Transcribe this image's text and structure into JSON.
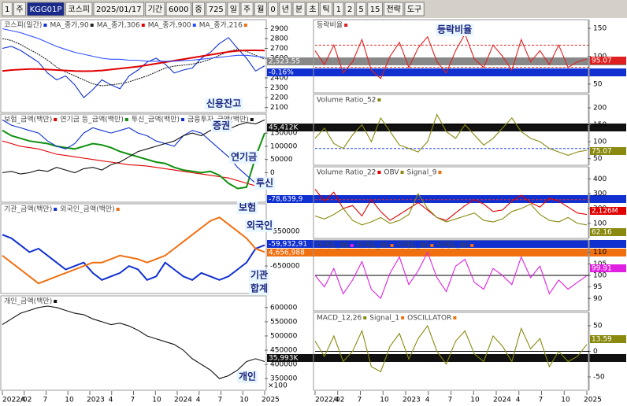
{
  "toolbar": {
    "items": [
      "1",
      "주",
      "KGG01P",
      "코스피",
      "2025/01/17",
      "기간",
      "6000",
      "중",
      "725",
      "일",
      "주",
      "월",
      "0",
      "년",
      "분",
      "초",
      "틱",
      "1",
      "2",
      "5",
      "15",
      "전략",
      "도구"
    ]
  },
  "x_labels": [
    "2022/02",
    "4",
    "7",
    "10",
    "2023",
    "4",
    "7",
    "10",
    "2024",
    "4",
    "7",
    "10",
    "2025"
  ],
  "left_panels": [
    {
      "labels": [
        "코스피(일간)",
        "MA_종가,90",
        "MA_종가,306",
        "MA_종가,900",
        "MA_종가,216"
      ],
      "ylim": [
        2080,
        2960
      ],
      "yticks": [
        2900,
        2800,
        2700,
        2600,
        2400,
        2300,
        2200,
        2100
      ],
      "series": [
        {
          "color": "#1030d0",
          "values": [
            2700,
            2720,
            2680,
            2620,
            2560,
            2450,
            2380,
            2420,
            2330,
            2200,
            2280,
            2380,
            2330,
            2290,
            2420,
            2480,
            2560,
            2600,
            2540,
            2450,
            2480,
            2500,
            2600,
            2660,
            2750,
            2810,
            2700,
            2600,
            2470,
            2523.55
          ]
        },
        {
          "color": "#222",
          "values": [
            2800,
            2780,
            2740,
            2690,
            2640,
            2580,
            2510,
            2460,
            2420,
            2380,
            2340,
            2320,
            2330,
            2340,
            2360,
            2390,
            2420,
            2460,
            2500,
            2520,
            2530,
            2540,
            2560,
            2590,
            2630,
            2670,
            2690,
            2670,
            2630,
            2590
          ]
        },
        {
          "color": "#e00000",
          "values": [
            2470,
            2480,
            2485,
            2490,
            2490,
            2485,
            2480,
            2475,
            2470,
            2468,
            2470,
            2475,
            2485,
            2495,
            2505,
            2515,
            2530,
            2545,
            2560,
            2575,
            2590,
            2605,
            2620,
            2635,
            2650,
            2665,
            2675,
            2680,
            2680,
            2678
          ]
        },
        {
          "color": "#3050ff",
          "values": [
            2900,
            2880,
            2860,
            2830,
            2800,
            2760,
            2720,
            2690,
            2660,
            2640,
            2620,
            2600,
            2590,
            2590,
            2580,
            2580,
            2570,
            2570,
            2570,
            2570,
            2575,
            2580,
            2590,
            2600,
            2610,
            2620,
            2630,
            2630,
            2620,
            2610
          ]
        }
      ],
      "tags": [
        {
          "label": "2,523.55",
          "color": "#888"
        },
        {
          "label": "-0.16%",
          "color": "#1030d0"
        }
      ]
    },
    {
      "labels": [
        "보험_금액(백만)",
        "연기금 등_금액(백만)",
        "투신_금액(백만)",
        "금융투자_금액(백만)"
      ],
      "ylim": [
        -100000,
        210000
      ],
      "yticks": [
        150000,
        100000,
        50000,
        0
      ],
      "series": [
        {
          "color": "#e00000",
          "values": [
            120000,
            110000,
            100000,
            95000,
            90000,
            80000,
            70000,
            65000,
            60000,
            55000,
            50000,
            45000,
            40000,
            35000,
            30000,
            28000,
            25000,
            20000,
            15000,
            10000,
            5000,
            0,
            -5000,
            -10000,
            -15000,
            -20000,
            -30000,
            -40000,
            -50000,
            -55000
          ]
        },
        {
          "color": "#109010",
          "values": [
            160000,
            140000,
            130000,
            120000,
            115000,
            110000,
            100000,
            95000,
            90000,
            100000,
            110000,
            105000,
            95000,
            80000,
            70000,
            60000,
            50000,
            40000,
            35000,
            20000,
            10000,
            5000,
            0,
            5000,
            -10000,
            -40000,
            -60000,
            -55000,
            60000,
            150000
          ]
        },
        {
          "color": "#1030d0",
          "values": [
            200000,
            180000,
            170000,
            160000,
            150000,
            120000,
            100000,
            90000,
            110000,
            150000,
            170000,
            160000,
            150000,
            160000,
            170000,
            150000,
            140000,
            120000,
            110000,
            100000,
            140000,
            160000,
            150000,
            120000,
            90000,
            60000,
            20000,
            -10000,
            -40000,
            -50000
          ]
        },
        {
          "color": "#111",
          "values": [
            0,
            5000,
            -5000,
            0,
            10000,
            5000,
            20000,
            10000,
            0,
            15000,
            20000,
            10000,
            30000,
            40000,
            60000,
            80000,
            90000,
            100000,
            110000,
            120000,
            140000,
            150000,
            140000,
            160000,
            170000,
            165000,
            180000,
            190000,
            185000,
            200000
          ]
        }
      ],
      "tags": [
        {
          "label": "45,412K",
          "color": "#111"
        },
        {
          "label": "-78,639,9",
          "color": "#1030d0"
        }
      ]
    },
    {
      "labels": [
        "기관_금액(백만)",
        "외국인_금액(백만)"
      ],
      "ylim": [
        -720000,
        -480000
      ],
      "yticks": [
        -550000,
        -650000
      ],
      "series": [
        {
          "color": "#1030d0",
          "values": [
            -560000,
            -570000,
            -590000,
            -610000,
            -600000,
            -620000,
            -640000,
            -660000,
            -650000,
            -640000,
            -670000,
            -690000,
            -680000,
            -670000,
            -650000,
            -660000,
            -690000,
            -680000,
            -640000,
            -660000,
            -680000,
            -690000,
            -670000,
            -680000,
            -690000,
            -680000,
            -660000,
            -640000,
            -600000,
            -590000
          ]
        },
        {
          "color": "#f07010",
          "values": [
            -620000,
            -640000,
            -660000,
            -680000,
            -700000,
            -690000,
            -680000,
            -670000,
            -660000,
            -650000,
            -640000,
            -640000,
            -630000,
            -620000,
            -625000,
            -630000,
            -640000,
            -630000,
            -620000,
            -600000,
            -580000,
            -560000,
            -540000,
            -520000,
            -510000,
            -530000,
            -550000,
            -570000,
            -600000,
            -610000
          ]
        }
      ],
      "tags": [
        {
          "label": "-59,932,91",
          "color": "#1030d0"
        },
        {
          "label": "4,656,988",
          "color": "#f07010"
        }
      ]
    },
    {
      "labels": [
        "개인_금액(백만)"
      ],
      "unit": "×100",
      "ylim": [
        320000,
        630000
      ],
      "yticks": [
        600000,
        550000,
        500000,
        450000,
        400000,
        350000
      ],
      "series": [
        {
          "color": "#111",
          "values": [
            540000,
            560000,
            580000,
            590000,
            600000,
            605000,
            600000,
            590000,
            580000,
            575000,
            560000,
            550000,
            540000,
            545000,
            535000,
            520000,
            500000,
            490000,
            480000,
            470000,
            450000,
            420000,
            400000,
            380000,
            350000,
            360000,
            380000,
            410000,
            420000,
            410000
          ]
        }
      ],
      "tags": [
        {
          "label": "35,993K",
          "color": "#111"
        }
      ]
    }
  ],
  "right_panels": [
    {
      "labels": [
        "등락비율"
      ],
      "ylim": [
        40,
        160
      ],
      "yticks": [
        150,
        100,
        50
      ],
      "refs": [
        120,
        80
      ],
      "series": [
        {
          "color": "#e02020",
          "values": [
            110,
            85,
            120,
            70,
            90,
            130,
            75,
            60,
            100,
            125,
            80,
            115,
            135,
            90,
            70,
            110,
            140,
            95,
            80,
            120,
            100,
            75,
            130,
            90,
            110,
            85,
            120,
            80,
            90,
            95.07
          ]
        }
      ],
      "tags": [
        {
          "label": "95.07",
          "color": "#e02020"
        }
      ]
    },
    {
      "labels": [
        "Volume Ratio_52"
      ],
      "ylim": [
        40,
        230
      ],
      "yticks": [
        200,
        150,
        100,
        50
      ],
      "refs": [
        150,
        80
      ],
      "series": [
        {
          "color": "#8a8a10",
          "values": [
            110,
            140,
            95,
            80,
            120,
            150,
            100,
            170,
            130,
            90,
            80,
            70,
            100,
            180,
            130,
            110,
            150,
            120,
            90,
            110,
            140,
            170,
            130,
            110,
            100,
            80,
            70,
            60,
            70,
            75.07
          ]
        }
      ],
      "tags": [
        {
          "label": "75.07",
          "color": "#8a8a10"
        }
      ]
    },
    {
      "labels": [
        "Volume Ratio_22",
        "OBV",
        "Signal_9"
      ],
      "ylim": [
        20,
        460
      ],
      "yticks": [
        400,
        300,
        200,
        100
      ],
      "refs": [
        260
      ],
      "series": [
        {
          "color": "#e00000",
          "values": [
            330,
            250,
            310,
            200,
            220,
            150,
            260,
            180,
            120,
            160,
            200,
            240,
            190,
            140,
            120,
            170,
            220,
            260,
            230,
            180,
            190,
            250,
            290,
            240,
            210,
            270,
            250,
            210,
            170,
            160
          ]
        },
        {
          "color": "#8a8a10",
          "values": [
            150,
            130,
            160,
            200,
            120,
            90,
            110,
            140,
            100,
            120,
            160,
            300,
            200,
            140,
            110,
            130,
            150,
            170,
            120,
            110,
            130,
            180,
            200,
            230,
            160,
            120,
            110,
            140,
            100,
            90
          ]
        }
      ],
      "tags": [
        {
          "label": "2,126M",
          "color": "#e00000"
        },
        {
          "label": "62.16",
          "color": "#8a8a10"
        }
      ]
    },
    {
      "labels": [
        "이격도_90",
        "이격도_90",
        "이격도_90",
        "이격도_90"
      ],
      "ylim": [
        86,
        114
      ],
      "yticks": [
        110,
        105,
        100,
        95,
        90
      ],
      "refs": [
        100
      ],
      "series": [
        {
          "color": "#e020e0",
          "values": [
            100,
            95,
            103,
            92,
            98,
            106,
            94,
            90,
            101,
            108,
            96,
            102,
            110,
            99,
            93,
            104,
            107,
            97,
            94,
            103,
            100,
            96,
            108,
            99,
            104,
            92,
            98,
            94,
            97,
            99.91
          ]
        }
      ],
      "tags": [
        {
          "label": "99.91",
          "color": "#e020e0"
        }
      ]
    },
    {
      "labels": [
        "MACD_12,26",
        "Signal_1",
        "OSCILLATOR"
      ],
      "ylim": [
        -70,
        70
      ],
      "yticks": [
        50,
        0,
        -50
      ],
      "refs": [
        0
      ],
      "series": [
        {
          "color": "#8a8a10",
          "values": [
            20,
            -10,
            30,
            -20,
            0,
            40,
            -30,
            -40,
            10,
            35,
            -15,
            25,
            50,
            0,
            -25,
            20,
            40,
            -5,
            -20,
            30,
            10,
            -20,
            45,
            5,
            25,
            -30,
            0,
            -20,
            -10,
            13.59
          ]
        }
      ],
      "tags": [
        {
          "label": "13.59",
          "color": "#8a8a10"
        }
      ]
    }
  ],
  "annotations": [
    "신용잔고",
    "증권",
    "연기금",
    "투신",
    "보험",
    "외국인",
    "기관",
    "합계",
    "개인",
    "등락비율"
  ]
}
